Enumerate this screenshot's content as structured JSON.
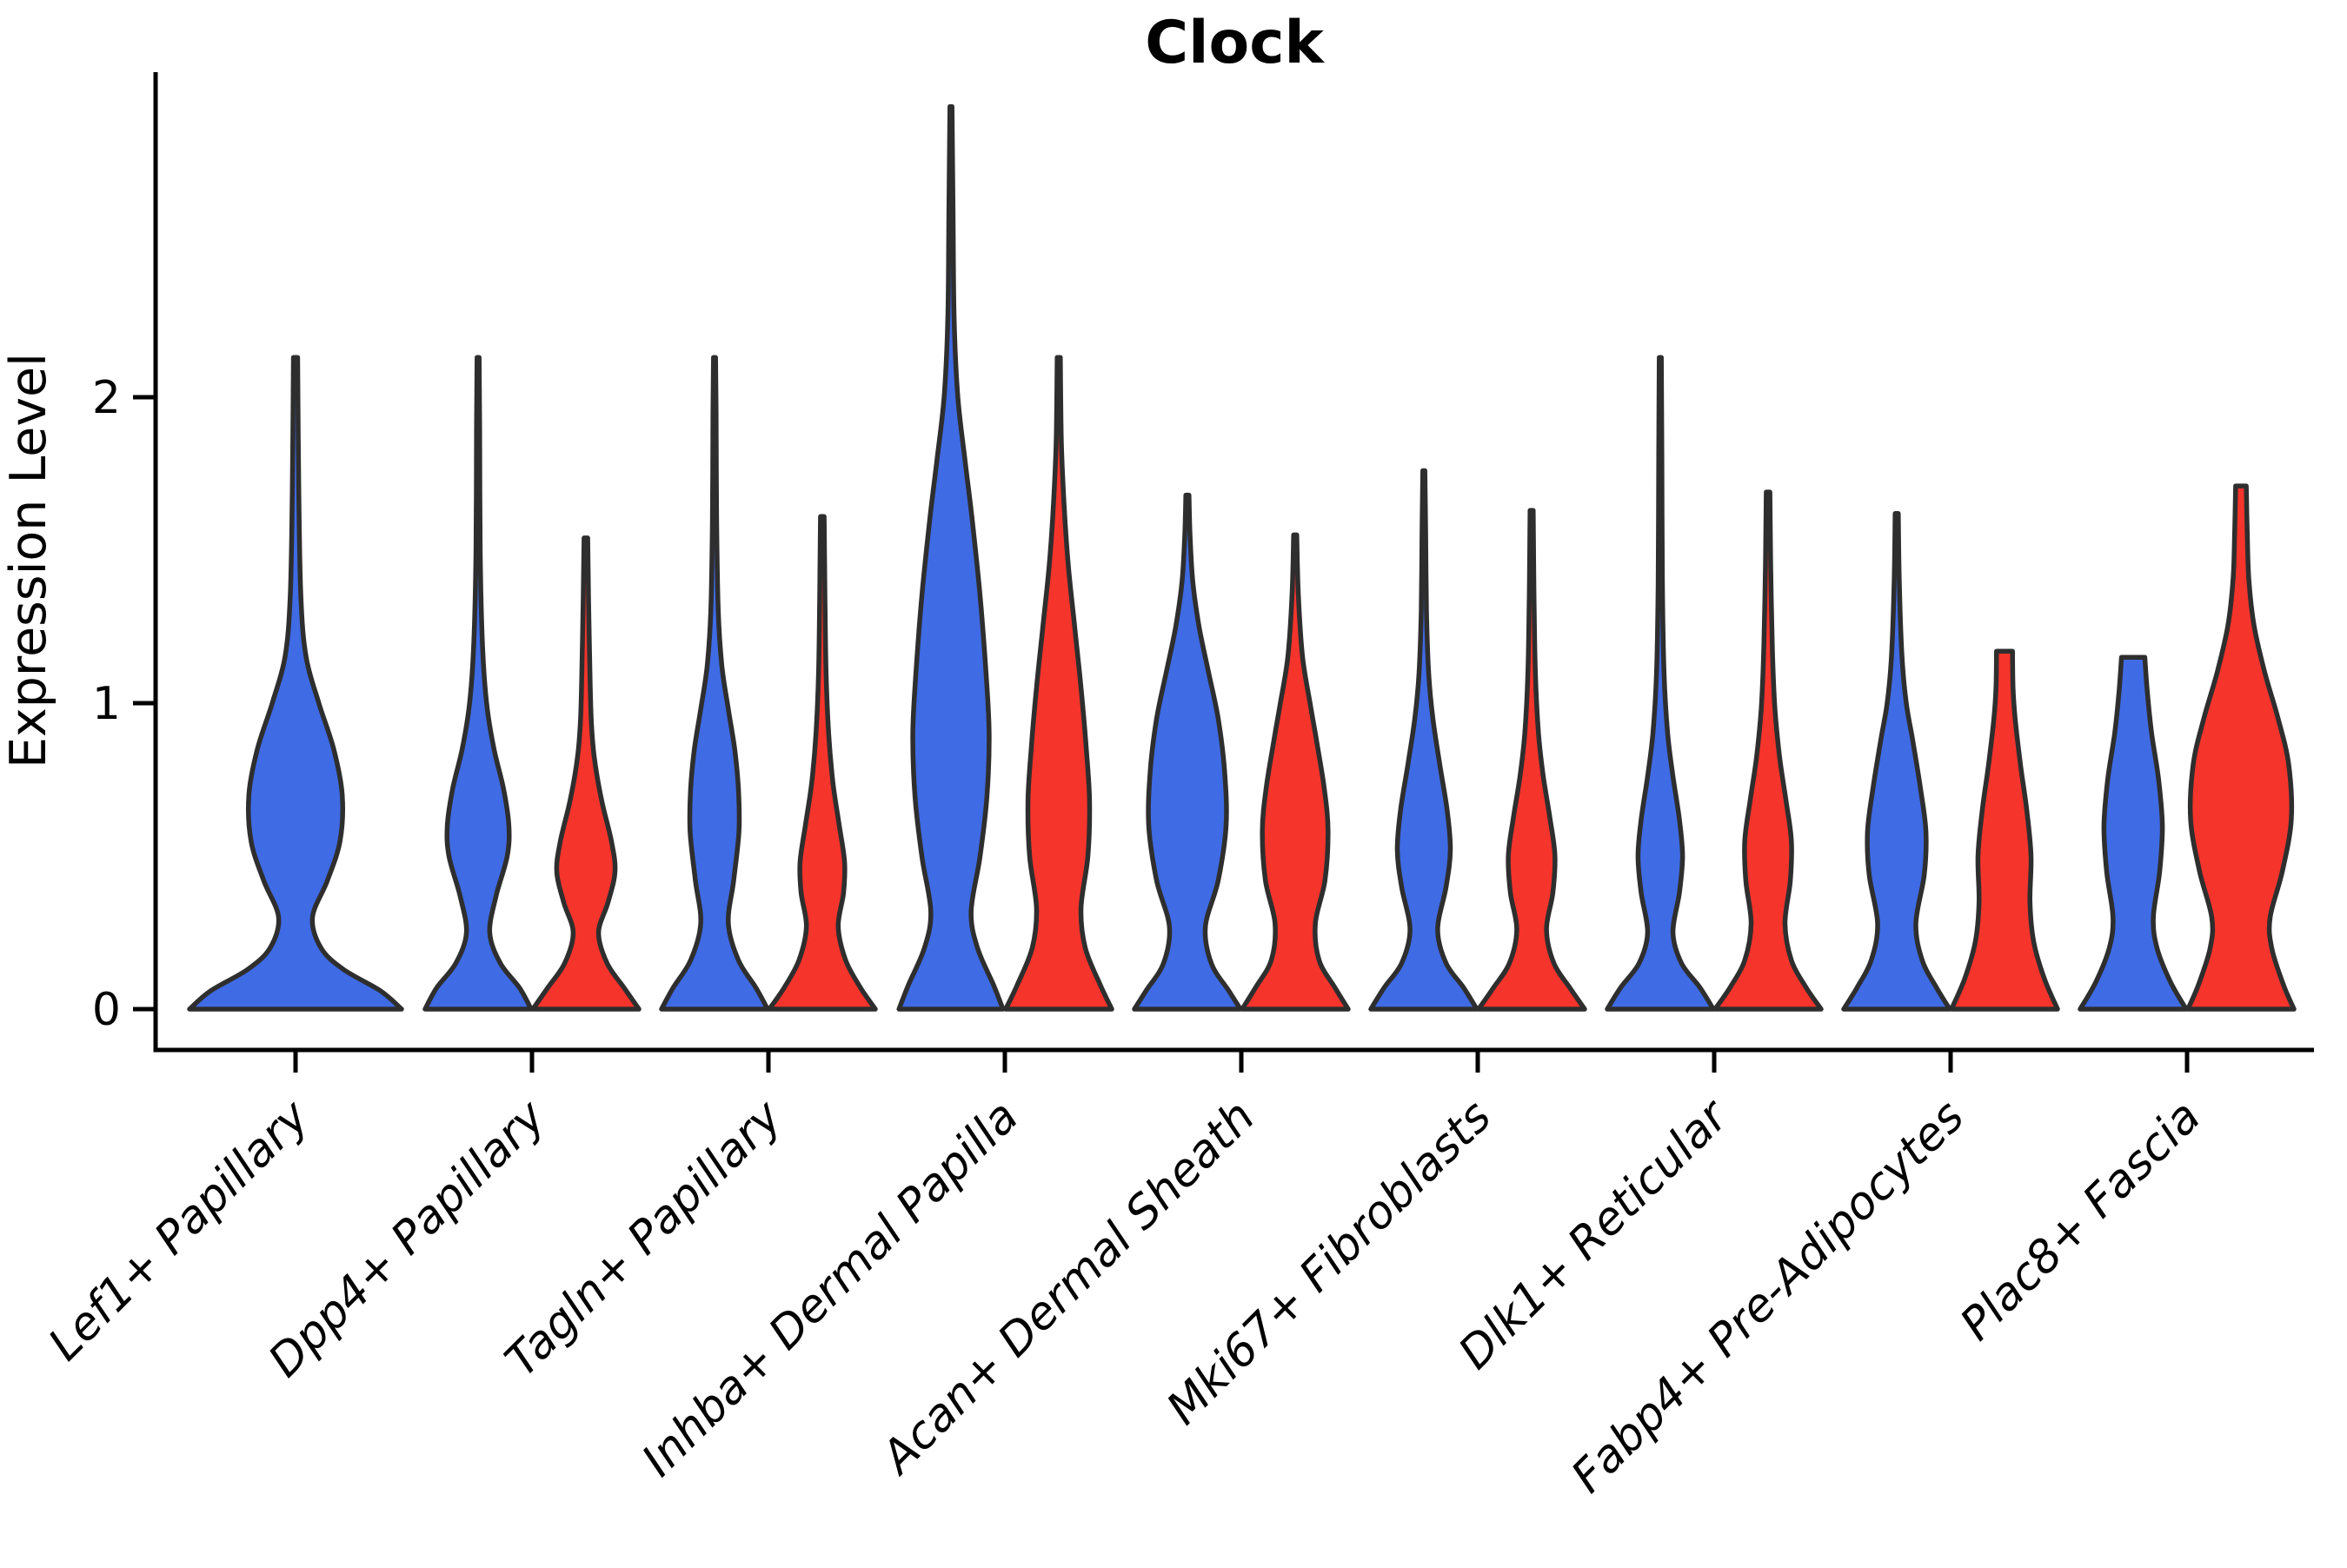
{
  "chart_data": {
    "type": "violin",
    "title": "Clock",
    "ylabel": "Expression Level",
    "xlabel": "",
    "yticks": [
      0,
      1,
      2
    ],
    "ylim": [
      -0.13,
      3.06
    ],
    "grid": false,
    "legend": "none",
    "colors": {
      "blue": "#3F6BE4",
      "red": "#F5342C",
      "outline": "#2E2E2E"
    },
    "groups": [
      "blue",
      "red"
    ],
    "categories": [
      "Lef1+ Papillary",
      "Dpp4+ Papillary",
      "Tagln+ Papillary",
      "Inhba+ Dermal Papilla",
      "Acan+ Dermal Sheath",
      "Mki67+ Fibroblasts",
      "Dlk1+ Reticular",
      "Fabp4+ Pre-Adipocytes",
      "Plac8+ Fascia"
    ],
    "violins": [
      {
        "category": "Lef1+ Papillary",
        "group": "blue",
        "span": "full",
        "max_value": 2.13,
        "profile": [
          [
            0,
            1.0
          ],
          [
            0.06,
            0.8
          ],
          [
            0.13,
            0.45
          ],
          [
            0.2,
            0.24
          ],
          [
            0.3,
            0.16
          ],
          [
            0.42,
            0.3
          ],
          [
            0.55,
            0.42
          ],
          [
            0.7,
            0.44
          ],
          [
            0.85,
            0.36
          ],
          [
            1.0,
            0.22
          ],
          [
            1.15,
            0.1
          ],
          [
            1.35,
            0.05
          ],
          [
            1.7,
            0.03
          ],
          [
            2.13,
            0.02
          ]
        ]
      },
      {
        "category": "Dpp4+ Papillary",
        "group": "blue",
        "span": "pair",
        "max_value": 2.13,
        "profile": [
          [
            0,
            1.0
          ],
          [
            0.07,
            0.78
          ],
          [
            0.15,
            0.42
          ],
          [
            0.25,
            0.22
          ],
          [
            0.37,
            0.34
          ],
          [
            0.5,
            0.55
          ],
          [
            0.6,
            0.58
          ],
          [
            0.72,
            0.48
          ],
          [
            0.85,
            0.3
          ],
          [
            1.0,
            0.16
          ],
          [
            1.2,
            0.08
          ],
          [
            1.5,
            0.04
          ],
          [
            1.9,
            0.03
          ],
          [
            2.13,
            0.02
          ]
        ]
      },
      {
        "category": "Dpp4+ Papillary",
        "group": "red",
        "span": "pair",
        "max_value": 1.54,
        "profile": [
          [
            0,
            1.0
          ],
          [
            0.07,
            0.72
          ],
          [
            0.15,
            0.4
          ],
          [
            0.25,
            0.24
          ],
          [
            0.35,
            0.42
          ],
          [
            0.45,
            0.55
          ],
          [
            0.55,
            0.48
          ],
          [
            0.68,
            0.3
          ],
          [
            0.82,
            0.16
          ],
          [
            0.95,
            0.1
          ],
          [
            1.15,
            0.07
          ],
          [
            1.35,
            0.05
          ],
          [
            1.54,
            0.035
          ]
        ]
      },
      {
        "category": "Tagln+ Papillary",
        "group": "blue",
        "span": "pair",
        "max_value": 2.13,
        "profile": [
          [
            0,
            1.0
          ],
          [
            0.07,
            0.78
          ],
          [
            0.16,
            0.45
          ],
          [
            0.28,
            0.26
          ],
          [
            0.42,
            0.36
          ],
          [
            0.58,
            0.46
          ],
          [
            0.72,
            0.45
          ],
          [
            0.85,
            0.38
          ],
          [
            0.98,
            0.26
          ],
          [
            1.12,
            0.14
          ],
          [
            1.3,
            0.07
          ],
          [
            1.6,
            0.04
          ],
          [
            1.95,
            0.03
          ],
          [
            2.13,
            0.02
          ]
        ]
      },
      {
        "category": "Tagln+ Papillary",
        "group": "red",
        "span": "pair",
        "max_value": 1.61,
        "profile": [
          [
            0,
            1.0
          ],
          [
            0.07,
            0.72
          ],
          [
            0.16,
            0.44
          ],
          [
            0.27,
            0.3
          ],
          [
            0.38,
            0.4
          ],
          [
            0.48,
            0.42
          ],
          [
            0.6,
            0.32
          ],
          [
            0.74,
            0.2
          ],
          [
            0.9,
            0.12
          ],
          [
            1.1,
            0.07
          ],
          [
            1.35,
            0.05
          ],
          [
            1.61,
            0.035
          ]
        ]
      },
      {
        "category": "Inhba+ Dermal Papilla",
        "group": "blue",
        "span": "pair",
        "max_value": 2.95,
        "profile": [
          [
            0,
            0.98
          ],
          [
            0.08,
            0.8
          ],
          [
            0.2,
            0.5
          ],
          [
            0.32,
            0.38
          ],
          [
            0.5,
            0.55
          ],
          [
            0.7,
            0.68
          ],
          [
            0.9,
            0.72
          ],
          [
            1.1,
            0.66
          ],
          [
            1.35,
            0.55
          ],
          [
            1.6,
            0.4
          ],
          [
            1.8,
            0.26
          ],
          [
            2.0,
            0.13
          ],
          [
            2.25,
            0.06
          ],
          [
            2.6,
            0.04
          ],
          [
            2.95,
            0.02
          ]
        ]
      },
      {
        "category": "Inhba+ Dermal Papilla",
        "group": "red",
        "span": "pair",
        "max_value": 2.13,
        "profile": [
          [
            0,
            1.0
          ],
          [
            0.08,
            0.78
          ],
          [
            0.2,
            0.5
          ],
          [
            0.33,
            0.42
          ],
          [
            0.5,
            0.55
          ],
          [
            0.68,
            0.58
          ],
          [
            0.85,
            0.52
          ],
          [
            1.05,
            0.42
          ],
          [
            1.25,
            0.3
          ],
          [
            1.45,
            0.18
          ],
          [
            1.65,
            0.1
          ],
          [
            1.85,
            0.05
          ],
          [
            2.13,
            0.03
          ]
        ]
      },
      {
        "category": "Acan+ Dermal Sheath",
        "group": "blue",
        "span": "pair",
        "max_value": 1.68,
        "profile": [
          [
            0,
            1.0
          ],
          [
            0.06,
            0.78
          ],
          [
            0.15,
            0.45
          ],
          [
            0.27,
            0.34
          ],
          [
            0.42,
            0.58
          ],
          [
            0.6,
            0.73
          ],
          [
            0.78,
            0.7
          ],
          [
            0.95,
            0.58
          ],
          [
            1.1,
            0.4
          ],
          [
            1.25,
            0.22
          ],
          [
            1.4,
            0.1
          ],
          [
            1.55,
            0.05
          ],
          [
            1.68,
            0.03
          ]
        ]
      },
      {
        "category": "Acan+ Dermal Sheath",
        "group": "red",
        "span": "pair",
        "max_value": 1.55,
        "profile": [
          [
            0,
            1.0
          ],
          [
            0.07,
            0.75
          ],
          [
            0.16,
            0.45
          ],
          [
            0.28,
            0.38
          ],
          [
            0.42,
            0.56
          ],
          [
            0.58,
            0.62
          ],
          [
            0.72,
            0.55
          ],
          [
            0.88,
            0.4
          ],
          [
            1.0,
            0.28
          ],
          [
            1.15,
            0.14
          ],
          [
            1.35,
            0.06
          ],
          [
            1.55,
            0.03
          ]
        ]
      },
      {
        "category": "Mki67+ Fibroblasts",
        "group": "blue",
        "span": "pair",
        "max_value": 1.76,
        "profile": [
          [
            0,
            1.0
          ],
          [
            0.07,
            0.75
          ],
          [
            0.15,
            0.42
          ],
          [
            0.26,
            0.26
          ],
          [
            0.4,
            0.42
          ],
          [
            0.52,
            0.5
          ],
          [
            0.65,
            0.44
          ],
          [
            0.8,
            0.3
          ],
          [
            0.95,
            0.17
          ],
          [
            1.1,
            0.09
          ],
          [
            1.3,
            0.05
          ],
          [
            1.55,
            0.035
          ],
          [
            1.76,
            0.02
          ]
        ]
      },
      {
        "category": "Mki67+ Fibroblasts",
        "group": "red",
        "span": "pair",
        "max_value": 1.63,
        "profile": [
          [
            0,
            1.0
          ],
          [
            0.07,
            0.72
          ],
          [
            0.15,
            0.42
          ],
          [
            0.26,
            0.28
          ],
          [
            0.38,
            0.4
          ],
          [
            0.5,
            0.44
          ],
          [
            0.62,
            0.35
          ],
          [
            0.76,
            0.22
          ],
          [
            0.9,
            0.13
          ],
          [
            1.1,
            0.07
          ],
          [
            1.35,
            0.045
          ],
          [
            1.63,
            0.03
          ]
        ]
      },
      {
        "category": "Dlk1+ Reticular",
        "group": "blue",
        "span": "pair",
        "max_value": 2.13,
        "profile": [
          [
            0,
            1.0
          ],
          [
            0.07,
            0.75
          ],
          [
            0.15,
            0.4
          ],
          [
            0.25,
            0.24
          ],
          [
            0.38,
            0.36
          ],
          [
            0.5,
            0.42
          ],
          [
            0.62,
            0.36
          ],
          [
            0.76,
            0.24
          ],
          [
            0.9,
            0.14
          ],
          [
            1.1,
            0.07
          ],
          [
            1.4,
            0.04
          ],
          [
            1.8,
            0.03
          ],
          [
            2.13,
            0.02
          ]
        ]
      },
      {
        "category": "Dlk1+ Reticular",
        "group": "red",
        "span": "pair",
        "max_value": 1.69,
        "profile": [
          [
            0,
            1.0
          ],
          [
            0.07,
            0.72
          ],
          [
            0.16,
            0.44
          ],
          [
            0.28,
            0.32
          ],
          [
            0.42,
            0.42
          ],
          [
            0.55,
            0.44
          ],
          [
            0.68,
            0.34
          ],
          [
            0.82,
            0.22
          ],
          [
            0.98,
            0.13
          ],
          [
            1.18,
            0.08
          ],
          [
            1.45,
            0.05
          ],
          [
            1.69,
            0.035
          ]
        ]
      },
      {
        "category": "Fabp4+ Pre-Adipocytes",
        "group": "blue",
        "span": "pair",
        "max_value": 1.62,
        "profile": [
          [
            0,
            1.0
          ],
          [
            0.07,
            0.75
          ],
          [
            0.16,
            0.48
          ],
          [
            0.28,
            0.36
          ],
          [
            0.44,
            0.52
          ],
          [
            0.58,
            0.55
          ],
          [
            0.72,
            0.45
          ],
          [
            0.88,
            0.3
          ],
          [
            1.0,
            0.18
          ],
          [
            1.15,
            0.1
          ],
          [
            1.38,
            0.05
          ],
          [
            1.62,
            0.03
          ]
        ]
      },
      {
        "category": "Fabp4+ Pre-Adipocytes",
        "group": "red",
        "span": "pair",
        "max_value": 1.17,
        "profile": [
          [
            0,
            1.0
          ],
          [
            0.1,
            0.75
          ],
          [
            0.22,
            0.55
          ],
          [
            0.35,
            0.48
          ],
          [
            0.5,
            0.5
          ],
          [
            0.65,
            0.42
          ],
          [
            0.8,
            0.3
          ],
          [
            0.95,
            0.2
          ],
          [
            1.05,
            0.16
          ],
          [
            1.17,
            0.15
          ]
        ]
      },
      {
        "category": "Plac8+ Fascia",
        "group": "blue",
        "span": "pair",
        "max_value": 1.15,
        "profile": [
          [
            0,
            1.0
          ],
          [
            0.09,
            0.7
          ],
          [
            0.2,
            0.45
          ],
          [
            0.3,
            0.38
          ],
          [
            0.45,
            0.5
          ],
          [
            0.6,
            0.55
          ],
          [
            0.75,
            0.48
          ],
          [
            0.9,
            0.35
          ],
          [
            1.03,
            0.27
          ],
          [
            1.15,
            0.22
          ]
        ]
      },
      {
        "category": "Plac8+ Fascia",
        "group": "red",
        "span": "pair",
        "max_value": 1.71,
        "profile": [
          [
            0,
            1.0
          ],
          [
            0.08,
            0.8
          ],
          [
            0.2,
            0.58
          ],
          [
            0.3,
            0.55
          ],
          [
            0.45,
            0.78
          ],
          [
            0.62,
            0.95
          ],
          [
            0.8,
            0.9
          ],
          [
            0.95,
            0.7
          ],
          [
            1.1,
            0.45
          ],
          [
            1.25,
            0.25
          ],
          [
            1.4,
            0.15
          ],
          [
            1.55,
            0.12
          ],
          [
            1.71,
            0.1
          ]
        ]
      }
    ]
  }
}
